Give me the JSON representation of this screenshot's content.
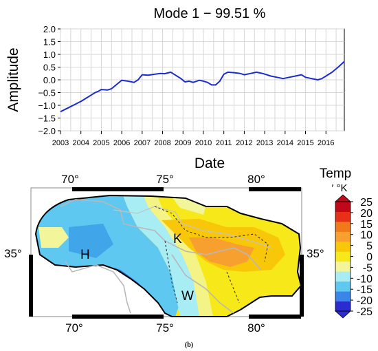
{
  "caption": "(b)",
  "chart_data": [
    {
      "type": "line",
      "title": "Mode 1 − 99.51 %",
      "xlabel": "Date",
      "ylabel": "Amplitude",
      "ylim": [
        -2.0,
        2.0
      ],
      "xlim": [
        2003,
        2016.9
      ],
      "grid": true,
      "line_color": "#1a2bd0",
      "y_ticks": [
        "2.0",
        "1.5",
        "1.0",
        "0.5",
        "0.0",
        "−0.5",
        "−1.0",
        "−1.5",
        "−2.0"
      ],
      "x_ticks": [
        "2003",
        "2004",
        "2005",
        "2006",
        "2007",
        "2008",
        "2009",
        "2010",
        "2011",
        "2012",
        "2013",
        "2014",
        "2015",
        "2016"
      ],
      "x": [
        2003.0,
        2003.5,
        2004.0,
        2004.3,
        2004.5,
        2004.7,
        2004.85,
        2005.0,
        2005.3,
        2005.5,
        2005.8,
        2006.0,
        2006.3,
        2006.6,
        2006.8,
        2007.0,
        2007.3,
        2007.6,
        2007.9,
        2008.1,
        2008.4,
        2008.7,
        2008.9,
        2009.1,
        2009.3,
        2009.5,
        2009.8,
        2010.0,
        2010.2,
        2010.4,
        2010.6,
        2010.8,
        2011.0,
        2011.2,
        2011.5,
        2011.8,
        2012.0,
        2012.3,
        2012.6,
        2012.9,
        2013.1,
        2013.3,
        2013.6,
        2013.9,
        2014.2,
        2014.5,
        2014.8,
        2015.0,
        2015.3,
        2015.6,
        2015.8,
        2016.0,
        2016.3,
        2016.6,
        2016.9
      ],
      "y": [
        -1.25,
        -1.05,
        -0.85,
        -0.7,
        -0.6,
        -0.5,
        -0.45,
        -0.38,
        -0.4,
        -0.35,
        -0.15,
        -0.02,
        -0.05,
        -0.1,
        0.0,
        0.2,
        0.18,
        0.22,
        0.25,
        0.24,
        0.3,
        0.15,
        0.05,
        -0.08,
        -0.05,
        -0.1,
        -0.02,
        -0.05,
        -0.1,
        -0.2,
        -0.2,
        -0.05,
        0.22,
        0.3,
        0.28,
        0.25,
        0.2,
        0.25,
        0.3,
        0.25,
        0.2,
        0.15,
        0.1,
        0.05,
        0.1,
        0.15,
        0.2,
        0.1,
        0.05,
        0.0,
        0.05,
        0.15,
        0.3,
        0.5,
        0.72
      ]
    },
    {
      "type": "heatmap",
      "legend_title": "Temp",
      "legend_unit": "′ °K",
      "colorbar_ticks": [
        "25",
        "20",
        "15",
        "10",
        "5",
        "0",
        "-5",
        "-10",
        "-15",
        "-20",
        "-25"
      ],
      "colorbar_range": [
        -25,
        25
      ],
      "lon_ticks_top": [
        "70°",
        "75°",
        "80°"
      ],
      "lon_ticks_bottom": [
        "70°",
        "75°",
        "80°"
      ],
      "lat_tick_left": "35°",
      "lat_tick_right": "35°",
      "region_labels": [
        "H",
        "K",
        "W"
      ],
      "colors": [
        "#2b2bd0",
        "#3a86e8",
        "#5ec8f0",
        "#a8ecf4",
        "#f2f59a",
        "#f7e81a",
        "#f9c70a",
        "#f7a030",
        "#f07a1a",
        "#e83018",
        "#c00818"
      ]
    }
  ]
}
